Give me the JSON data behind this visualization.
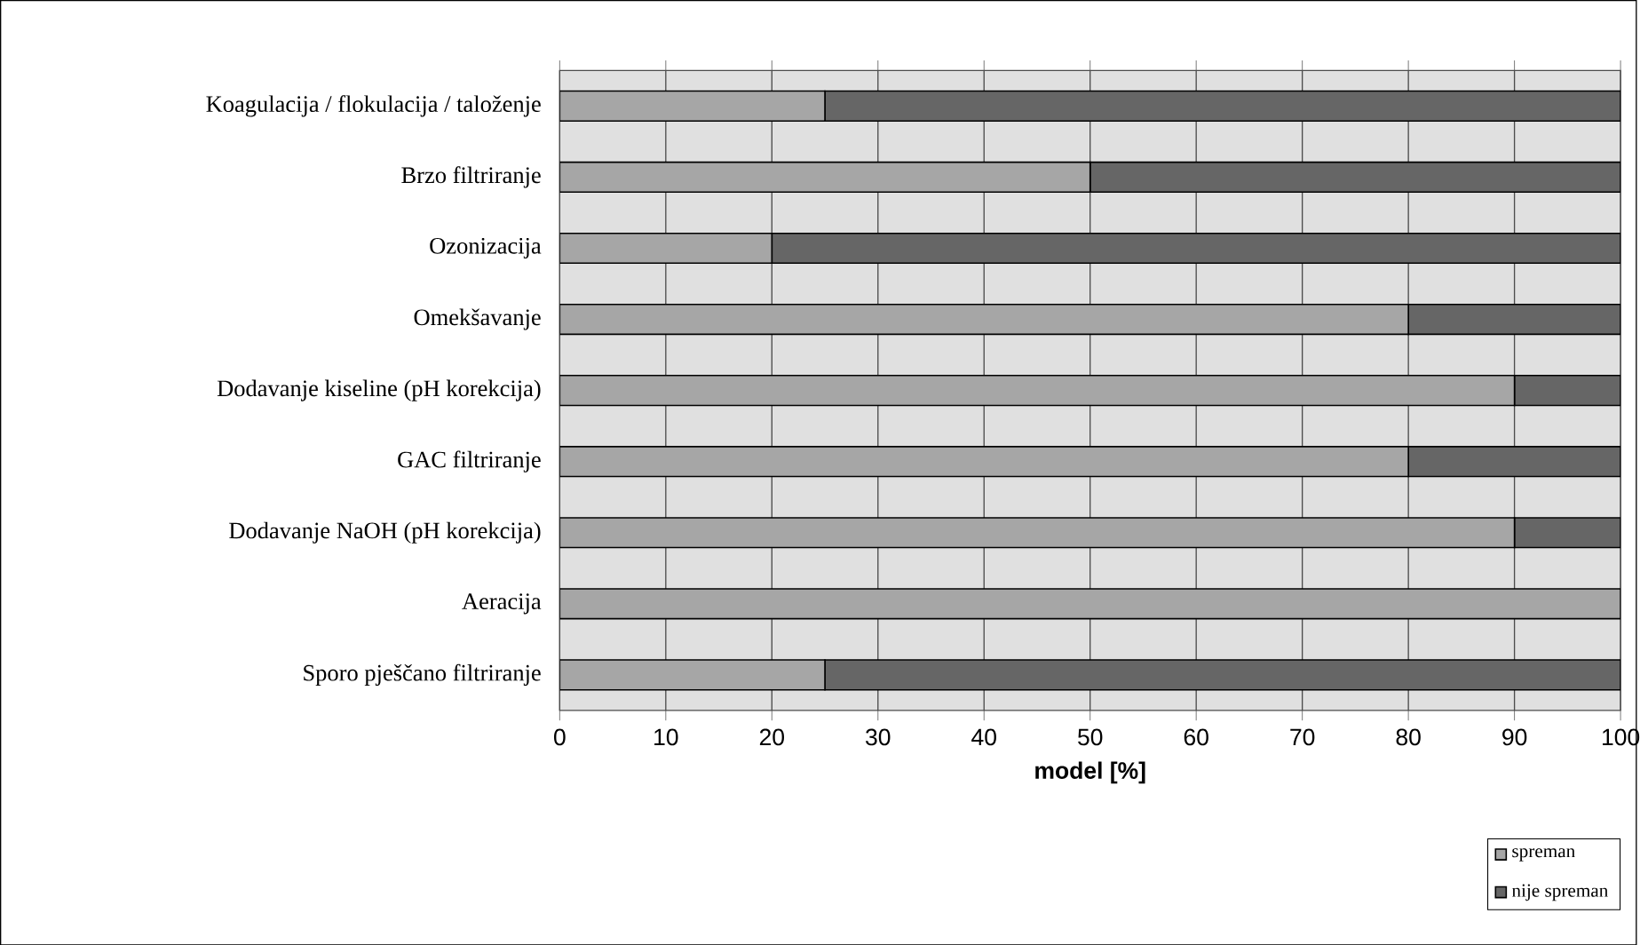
{
  "chart_data": {
    "type": "bar",
    "orientation": "horizontal",
    "stacked": true,
    "xlabel": "model [%]",
    "categories": [
      "Koagulacija / flokulacija / taloženje",
      "Brzo filtriranje",
      "Ozonizacija",
      "Omekšavanje",
      "Dodavanje kiseline (pH korekcija)",
      "GAC filtriranje",
      "Dodavanje NaOH (pH korekcija)",
      "Aeracija",
      "Sporo pješčano filtriranje"
    ],
    "series": [
      {
        "name": "spreman",
        "color": "#a6a6a6",
        "values": [
          25,
          50,
          20,
          80,
          90,
          80,
          90,
          100,
          25
        ]
      },
      {
        "name": "nije spreman",
        "color": "#666666",
        "values": [
          75,
          50,
          80,
          20,
          10,
          20,
          10,
          0,
          75
        ]
      }
    ],
    "xlim": [
      0,
      100
    ],
    "xticks": [
      0,
      10,
      20,
      30,
      40,
      50,
      60,
      70,
      80,
      90,
      100
    ],
    "grid": "x",
    "legend": "bottom right"
  }
}
